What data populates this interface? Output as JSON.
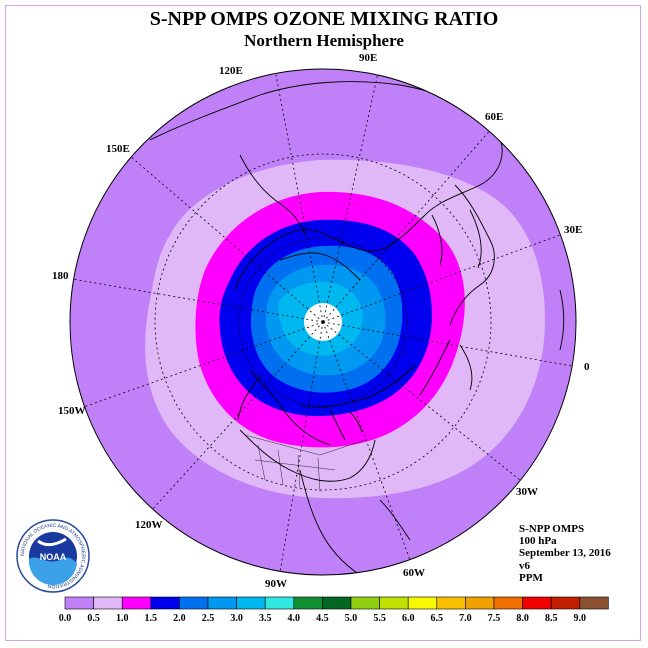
{
  "title": "S-NPP OMPS OZONE MIXING RATIO",
  "subtitle": "Northern Hemisphere",
  "longitudes": [
    "120E",
    "90E",
    "60E",
    "30E",
    "0",
    "30W",
    "60W",
    "90W",
    "120W",
    "150W",
    "180",
    "150E"
  ],
  "info": {
    "instrument": "S-NPP OMPS",
    "level": "100 hPa",
    "date": "September 13, 2016",
    "version": "v6",
    "unit": "PPM"
  },
  "colorbar": {
    "labels": [
      "0.0",
      "0.5",
      "1.0",
      "1.5",
      "2.0",
      "2.5",
      "3.0",
      "3.5",
      "4.0",
      "4.5",
      "5.0",
      "5.5",
      "6.0",
      "6.5",
      "7.0",
      "7.5",
      "8.0",
      "8.5",
      "9.0"
    ],
    "colors": [
      "#c080f8",
      "#e0b8f8",
      "#ff00ff",
      "#0000ee",
      "#0070f0",
      "#0098f0",
      "#00b8f0",
      "#30e8e0",
      "#109030",
      "#006820",
      "#90d010",
      "#c0e000",
      "#f8f800",
      "#f8c000",
      "#f0a000",
      "#f07000",
      "#f00000",
      "#c02000",
      "#8a5030"
    ]
  },
  "colors": {
    "background": "#c080f8",
    "light": "#e0b8f8",
    "magenta": "#ff00ff",
    "blue": "#0000ee",
    "mid_blue": "#0070f0",
    "sky": "#0098f0",
    "cyan": "#00b8f0"
  },
  "logo": {
    "text": "NOAA",
    "ring_text": "NATIONAL OCEANIC AND ATMOSPHERIC ADMINISTRATION"
  }
}
